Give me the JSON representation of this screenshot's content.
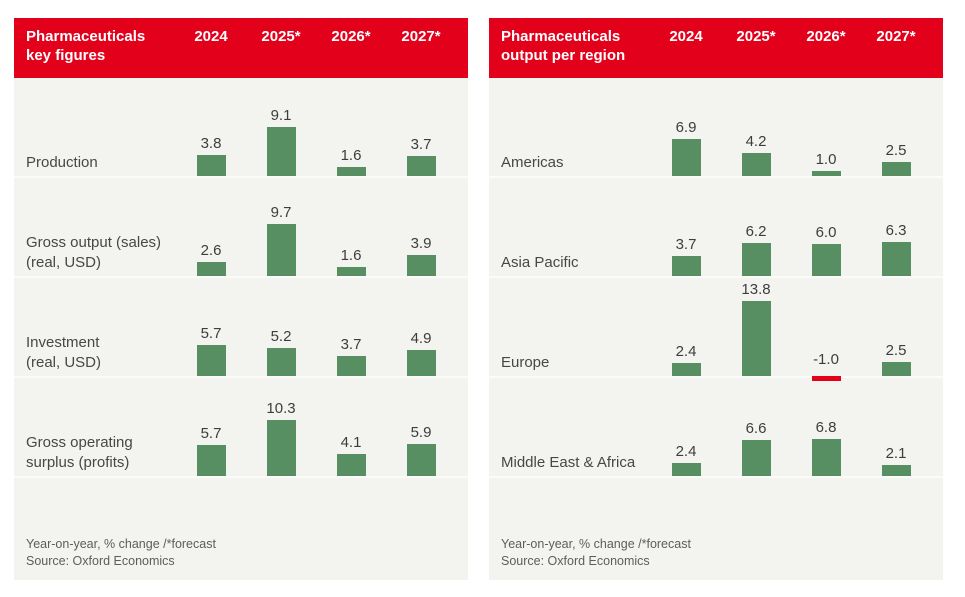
{
  "colors": {
    "header_bg": "#e2001b",
    "bar_positive": "#578f62",
    "bar_negative": "#e2001b",
    "panel_bg": "#f3f3f0"
  },
  "chart_data": [
    {
      "type": "bar",
      "title": "Pharmaceuticals\nkey figures",
      "unit": "Year-on-year, % change",
      "columns": [
        "2024",
        "2025*",
        "2026*",
        "2027*"
      ],
      "rows": [
        {
          "label": "Production",
          "values": [
            3.8,
            9.1,
            1.6,
            3.7
          ],
          "value_labels": [
            "3.8",
            "9.1",
            "1.6",
            "3.7"
          ]
        },
        {
          "label": "Gross output (sales)\n(real, USD)",
          "values": [
            2.6,
            9.7,
            1.6,
            3.9
          ],
          "value_labels": [
            "2.6",
            "9.7",
            "1.6",
            "3.9"
          ]
        },
        {
          "label": "Investment\n(real, USD)",
          "values": [
            5.7,
            5.2,
            3.7,
            4.9
          ],
          "value_labels": [
            "5.7",
            "5.2",
            "3.7",
            "4.9"
          ]
        },
        {
          "label": "Gross operating\nsurplus (profits)",
          "values": [
            5.7,
            10.3,
            4.1,
            5.9
          ],
          "value_labels": [
            "5.7",
            "10.3",
            "4.1",
            "5.9"
          ]
        }
      ],
      "footnote": "Year-on-year, % change /*forecast",
      "source": "Source: Oxford Economics"
    },
    {
      "type": "bar",
      "title": "Pharmaceuticals\noutput per region",
      "unit": "Year-on-year, % change",
      "columns": [
        "2024",
        "2025*",
        "2026*",
        "2027*"
      ],
      "rows": [
        {
          "label": "Americas",
          "values": [
            6.9,
            4.2,
            1.0,
            2.5
          ],
          "value_labels": [
            "6.9",
            "4.2",
            "1.0",
            "2.5"
          ]
        },
        {
          "label": "Asia Pacific",
          "values": [
            3.7,
            6.2,
            6.0,
            6.3
          ],
          "value_labels": [
            "3.7",
            "6.2",
            "6.0",
            "6.3"
          ]
        },
        {
          "label": "Europe",
          "values": [
            2.4,
            13.8,
            -1.0,
            2.5
          ],
          "value_labels": [
            "2.4",
            "13.8",
            "-1.0",
            "2.5"
          ]
        },
        {
          "label": "Middle East & Africa",
          "values": [
            2.4,
            6.6,
            6.8,
            2.1
          ],
          "value_labels": [
            "2.4",
            "6.6",
            "6.8",
            "2.1"
          ]
        }
      ],
      "footnote": "Year-on-year, % change /*forecast",
      "source": "Source: Oxford Economics"
    }
  ]
}
